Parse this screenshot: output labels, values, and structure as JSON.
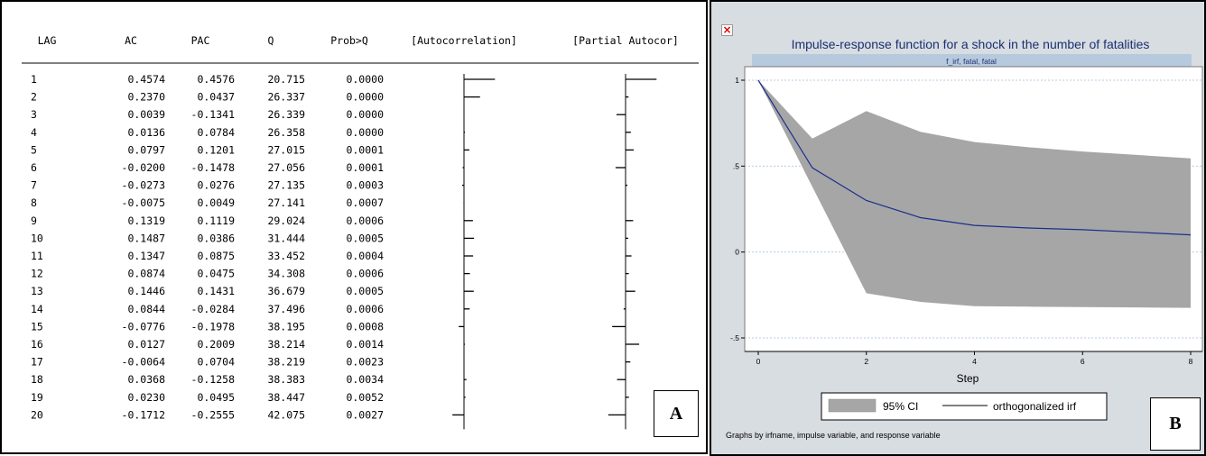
{
  "panel_a": {
    "columns": [
      "LAG",
      "AC",
      "PAC",
      "Q",
      "Prob>Q",
      "[Autocorrelation]",
      "[Partial Autocor]"
    ],
    "letter": "A"
  },
  "panel_b": {
    "letter": "B",
    "close_icon": "close-icon",
    "legend_ci": "95% CI",
    "legend_irf": "orthogonalized irf",
    "note": "Graphs by irfname, impulse variable, and response variable"
  },
  "chart_data": [
    {
      "type": "table",
      "columns": [
        "LAG",
        "AC",
        "PAC",
        "Q",
        "Prob>Q",
        "[Autocorrelation]",
        "[Partial Autocor]"
      ],
      "rows": [
        [
          "1",
          "0.4574",
          "0.4576",
          "20.715",
          "0.0000"
        ],
        [
          "2",
          "0.2370",
          "0.0437",
          "26.337",
          "0.0000"
        ],
        [
          "3",
          "0.0039",
          "-0.1341",
          "26.339",
          "0.0000"
        ],
        [
          "4",
          "0.0136",
          "0.0784",
          "26.358",
          "0.0000"
        ],
        [
          "5",
          "0.0797",
          "0.1201",
          "27.015",
          "0.0001"
        ],
        [
          "6",
          "-0.0200",
          "-0.1478",
          "27.056",
          "0.0001"
        ],
        [
          "7",
          "-0.0273",
          "0.0276",
          "27.135",
          "0.0003"
        ],
        [
          "8",
          "-0.0075",
          "0.0049",
          "27.141",
          "0.0007"
        ],
        [
          "9",
          "0.1319",
          "0.1119",
          "29.024",
          "0.0006"
        ],
        [
          "10",
          "0.1487",
          "0.0386",
          "31.444",
          "0.0005"
        ],
        [
          "11",
          "0.1347",
          "0.0875",
          "33.452",
          "0.0004"
        ],
        [
          "12",
          "0.0874",
          "0.0475",
          "34.308",
          "0.0006"
        ],
        [
          "13",
          "0.1446",
          "0.1431",
          "36.679",
          "0.0005"
        ],
        [
          "14",
          "0.0844",
          "-0.0284",
          "37.496",
          "0.0006"
        ],
        [
          "15",
          "-0.0776",
          "-0.1978",
          "38.195",
          "0.0008"
        ],
        [
          "16",
          "0.0127",
          "0.2009",
          "38.214",
          "0.0014"
        ],
        [
          "17",
          "-0.0064",
          "0.0704",
          "38.219",
          "0.0023"
        ],
        [
          "18",
          "0.0368",
          "-0.1258",
          "38.383",
          "0.0034"
        ],
        [
          "19",
          "0.0230",
          "0.0495",
          "38.447",
          "0.0052"
        ],
        [
          "20",
          "-0.1712",
          "-0.2555",
          "42.075",
          "0.0027"
        ]
      ],
      "bar_range": [
        -1,
        1
      ]
    },
    {
      "type": "area",
      "title": "Impulse-response function for a shock in the number of fatalities",
      "subtitle": "f_irf, fatal, fatal",
      "xlabel": "Step",
      "ylabel": "",
      "xlim": [
        0,
        8
      ],
      "ylim": [
        -0.5,
        1
      ],
      "xticks": [
        "0",
        "2",
        "4",
        "6",
        "8"
      ],
      "yticks": [
        "-.5",
        "0",
        ".5",
        "1"
      ],
      "grid": true,
      "legend": "bottom",
      "colors": {
        "ci": "#a6a6a6",
        "irf": "#1a2f8c",
        "strip": "#b7c9dd",
        "grid": "#b8cbe0"
      },
      "x": [
        0,
        1,
        2,
        3,
        4,
        5,
        6,
        7,
        8
      ],
      "series": [
        {
          "name": "orthogonalized irf",
          "values": [
            1.0,
            0.49,
            0.3,
            0.2,
            0.155,
            0.14,
            0.13,
            0.115,
            0.1
          ]
        },
        {
          "name": "95% CI",
          "upper": [
            1.0,
            0.66,
            0.82,
            0.7,
            0.64,
            0.61,
            0.585,
            0.565,
            0.545
          ],
          "lower": [
            1.0,
            0.38,
            -0.24,
            -0.29,
            -0.315,
            -0.318,
            -0.32,
            -0.322,
            -0.325
          ]
        }
      ]
    }
  ]
}
